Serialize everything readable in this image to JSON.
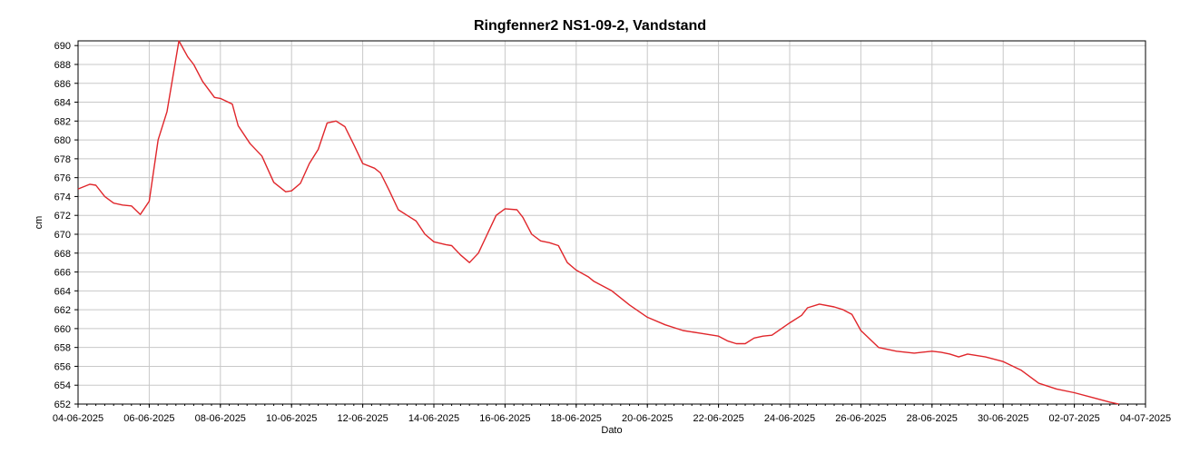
{
  "chart_data": {
    "type": "line",
    "title": "Ringfenner2 NS1-09-2, Vandstand",
    "xlabel": "Dato",
    "ylabel": "cm",
    "ylim": [
      652,
      690.5
    ],
    "xlim": [
      "2025-06-04",
      "2025-07-04"
    ],
    "grid": true,
    "x_ticks": [
      "04-06-2025",
      "06-06-2025",
      "08-06-2025",
      "10-06-2025",
      "12-06-2025",
      "14-06-2025",
      "16-06-2025",
      "18-06-2025",
      "20-06-2025",
      "22-06-2025",
      "24-06-2025",
      "26-06-2025",
      "28-06-2025",
      "30-06-2025",
      "02-07-2025",
      "04-07-2025"
    ],
    "y_ticks": [
      652,
      654,
      656,
      658,
      660,
      662,
      664,
      666,
      668,
      670,
      672,
      674,
      676,
      678,
      680,
      682,
      684,
      686,
      688,
      690
    ],
    "colors": {
      "series": "#e0262b",
      "grid": "#c8c8c8",
      "axis": "#000000"
    },
    "series": [
      {
        "x": [
          "2025-06-04 00:00",
          "2025-06-04 08:00",
          "2025-06-04 12:00",
          "2025-06-04 18:00",
          "2025-06-05 00:00",
          "2025-06-05 06:00",
          "2025-06-05 12:00",
          "2025-06-05 18:00",
          "2025-06-06 00:00",
          "2025-06-06 06:00",
          "2025-06-06 12:00",
          "2025-06-06 20:00",
          "2025-06-07 02:00",
          "2025-06-07 06:00",
          "2025-06-07 12:00",
          "2025-06-07 20:00",
          "2025-06-08 00:00",
          "2025-06-08 08:00",
          "2025-06-08 12:00",
          "2025-06-08 20:00",
          "2025-06-09 04:00",
          "2025-06-09 12:00",
          "2025-06-09 20:00",
          "2025-06-10 00:00",
          "2025-06-10 06:00",
          "2025-06-10 12:00",
          "2025-06-10 18:00",
          "2025-06-11 00:00",
          "2025-06-11 06:00",
          "2025-06-11 12:00",
          "2025-06-11 18:00",
          "2025-06-12 00:00",
          "2025-06-12 08:00",
          "2025-06-12 12:00",
          "2025-06-12 18:00",
          "2025-06-13 00:00",
          "2025-06-13 08:00",
          "2025-06-13 12:00",
          "2025-06-13 18:00",
          "2025-06-14 00:00",
          "2025-06-14 08:00",
          "2025-06-14 12:00",
          "2025-06-14 18:00",
          "2025-06-15 00:00",
          "2025-06-15 06:00",
          "2025-06-15 12:00",
          "2025-06-15 18:00",
          "2025-06-16 00:00",
          "2025-06-16 08:00",
          "2025-06-16 12:00",
          "2025-06-16 18:00",
          "2025-06-17 00:00",
          "2025-06-17 06:00",
          "2025-06-17 12:00",
          "2025-06-17 18:00",
          "2025-06-18 00:00",
          "2025-06-18 08:00",
          "2025-06-18 12:00",
          "2025-06-19 00:00",
          "2025-06-19 12:00",
          "2025-06-20 00:00",
          "2025-06-20 12:00",
          "2025-06-21 00:00",
          "2025-06-21 12:00",
          "2025-06-22 00:00",
          "2025-06-22 06:00",
          "2025-06-22 12:00",
          "2025-06-22 18:00",
          "2025-06-23 00:00",
          "2025-06-23 06:00",
          "2025-06-23 12:00",
          "2025-06-24 00:00",
          "2025-06-24 08:00",
          "2025-06-24 12:00",
          "2025-06-24 20:00",
          "2025-06-25 06:00",
          "2025-06-25 12:00",
          "2025-06-25 18:00",
          "2025-06-26 00:00",
          "2025-06-26 12:00",
          "2025-06-27 00:00",
          "2025-06-27 12:00",
          "2025-06-28 00:00",
          "2025-06-28 06:00",
          "2025-06-28 12:00",
          "2025-06-28 18:00",
          "2025-06-29 00:00",
          "2025-06-29 12:00",
          "2025-06-30 00:00",
          "2025-06-30 12:00",
          "2025-07-01 00:00",
          "2025-07-01 12:00",
          "2025-07-02 00:00",
          "2025-07-02 12:00",
          "2025-07-03 00:00",
          "2025-07-03 06:00"
        ],
        "values": [
          674.8,
          675.3,
          675.2,
          674.0,
          673.3,
          673.1,
          673.0,
          672.1,
          673.5,
          680.0,
          683.0,
          690.5,
          688.8,
          688.0,
          686.2,
          684.5,
          684.4,
          683.8,
          681.5,
          679.6,
          678.3,
          675.5,
          674.5,
          674.6,
          675.4,
          677.5,
          679.0,
          681.8,
          682.0,
          681.4,
          679.5,
          677.5,
          677.0,
          676.5,
          674.6,
          672.6,
          671.8,
          671.4,
          670.0,
          669.2,
          668.9,
          668.8,
          667.8,
          667.0,
          668.0,
          670.0,
          672.0,
          672.7,
          672.6,
          671.8,
          670.0,
          669.3,
          669.1,
          668.8,
          667.0,
          666.2,
          665.5,
          665.0,
          664.0,
          662.5,
          661.2,
          660.4,
          659.8,
          659.5,
          659.2,
          658.7,
          658.4,
          658.4,
          659.0,
          659.2,
          659.3,
          660.6,
          661.4,
          662.2,
          662.6,
          662.3,
          662.0,
          661.5,
          659.8,
          658.0,
          657.6,
          657.4,
          657.6,
          657.5,
          657.3,
          657.0,
          657.3,
          657.0,
          656.5,
          655.6,
          654.2,
          653.6,
          653.2,
          652.7,
          652.2,
          652.0
        ]
      }
    ]
  }
}
